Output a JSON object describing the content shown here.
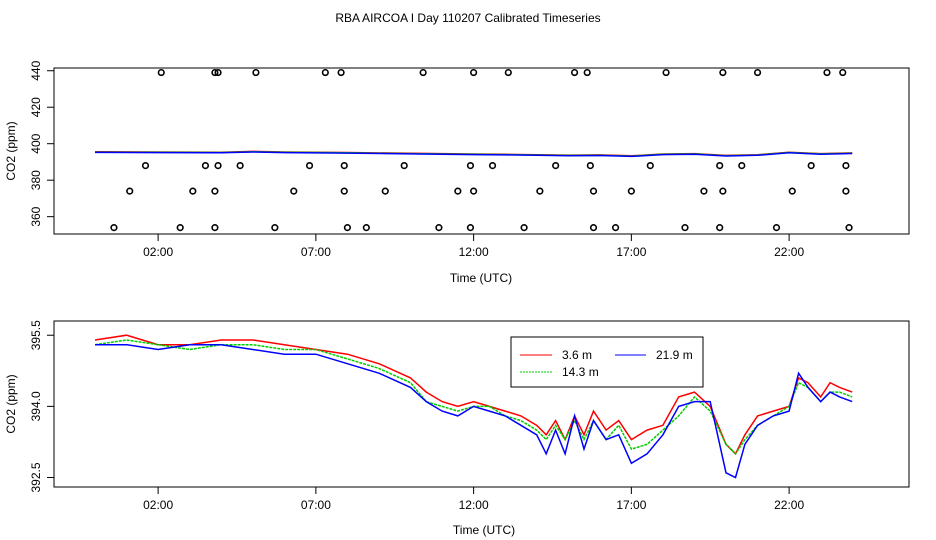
{
  "title": "RBA AIRCOA I  Day 110207  Calibrated Timeseries",
  "chart_data": [
    {
      "type": "scatter",
      "title": "RBA AIRCOA I  Day 110207  Calibrated Timeseries",
      "xlabel": "Time (UTC)",
      "ylabel": "CO2 (ppm)",
      "xlim": [
        -1.3,
        25.8
      ],
      "ylim": [
        350.5,
        441.5
      ],
      "x_ticks": [
        2,
        7,
        12,
        17,
        22
      ],
      "x_tick_labels": [
        "02:00",
        "07:00",
        "12:00",
        "17:00",
        "22:00"
      ],
      "y_ticks": [
        360,
        380,
        400,
        420,
        440
      ],
      "y_tick_labels": [
        "360",
        "380",
        "400",
        "420",
        "440"
      ],
      "grid": false,
      "line": {
        "x": [
          0.0,
          2.0,
          4.0,
          5.0,
          6.0,
          8.0,
          10.0,
          12.0,
          13.0,
          14.0,
          15.0,
          16.0,
          17.0,
          18.0,
          19.0,
          20.0,
          21.0,
          22.0,
          23.0,
          24.0
        ],
        "y": [
          395.4,
          395.3,
          395.2,
          395.6,
          395.3,
          395.0,
          394.6,
          394.2,
          394.0,
          393.8,
          393.6,
          393.7,
          393.2,
          394.2,
          394.4,
          393.4,
          393.8,
          395.2,
          394.4,
          394.8
        ],
        "colors": [
          "#ff0000",
          "#00cc00",
          "#0000ff"
        ]
      },
      "points": {
        "x": [
          0.6,
          1.1,
          1.6,
          2.1,
          2.7,
          3.1,
          3.5,
          3.8,
          3.8,
          3.8,
          3.9,
          3.9,
          4.6,
          5.1,
          5.7,
          6.3,
          6.8,
          7.3,
          7.8,
          7.9,
          7.9,
          8.0,
          8.6,
          9.2,
          9.8,
          10.4,
          10.9,
          11.5,
          11.9,
          11.9,
          12.0,
          12.0,
          12.6,
          13.1,
          13.6,
          14.1,
          14.6,
          15.2,
          15.6,
          15.7,
          15.8,
          15.8,
          16.5,
          17.0,
          17.6,
          18.1,
          18.7,
          19.3,
          19.8,
          19.8,
          19.9,
          19.9,
          20.5,
          21.0,
          21.6,
          22.1,
          22.7,
          23.2,
          23.7,
          23.8,
          23.8,
          23.9
        ],
        "y": [
          354,
          374,
          388,
          439,
          354,
          374,
          388,
          439,
          354,
          374,
          388,
          439,
          388,
          439,
          354,
          374,
          388,
          439,
          439,
          388,
          374,
          354,
          354,
          374,
          388,
          439,
          354,
          374,
          388,
          354,
          374,
          439,
          388,
          439,
          354,
          374,
          388,
          439,
          439,
          388,
          374,
          354,
          354,
          374,
          388,
          439,
          354,
          374,
          388,
          354,
          374,
          439,
          388,
          439,
          354,
          374,
          388,
          439,
          439,
          388,
          374,
          354
        ]
      }
    },
    {
      "type": "line",
      "xlabel": "Time (UTC)",
      "ylabel": "CO2 (ppm)",
      "xlim": [
        -1.3,
        25.8
      ],
      "ylim": [
        392.3,
        395.8
      ],
      "x_ticks": [
        2,
        7,
        12,
        17,
        22
      ],
      "x_tick_labels": [
        "02:00",
        "07:00",
        "12:00",
        "17:00",
        "22:00"
      ],
      "y_ticks": [
        392.5,
        394.0,
        395.5
      ],
      "y_tick_labels": [
        "392.5",
        "394.0",
        "395.5"
      ],
      "grid": false,
      "legend_position": "top-center",
      "x": [
        0.0,
        1.0,
        2.0,
        3.0,
        4.0,
        5.0,
        6.0,
        7.0,
        8.0,
        9.0,
        10.0,
        10.5,
        11.0,
        11.5,
        12.0,
        12.5,
        13.0,
        13.5,
        14.0,
        14.3,
        14.6,
        14.9,
        15.2,
        15.5,
        15.8,
        16.2,
        16.6,
        17.0,
        17.5,
        18.0,
        18.5,
        19.0,
        19.5,
        20.0,
        20.3,
        20.6,
        21.0,
        21.5,
        22.0,
        22.3,
        22.6,
        23.0,
        23.3,
        23.6,
        24.0
      ],
      "series": [
        {
          "name": "3.6 m",
          "color": "#ff0000",
          "values": [
            395.4,
            395.5,
            395.3,
            395.3,
            395.4,
            395.4,
            395.3,
            395.2,
            395.1,
            394.9,
            394.6,
            394.3,
            394.1,
            394.0,
            394.1,
            394.0,
            393.9,
            393.8,
            393.6,
            393.4,
            393.7,
            393.3,
            393.8,
            393.4,
            393.9,
            393.5,
            393.7,
            393.3,
            393.5,
            393.6,
            394.2,
            394.3,
            394.0,
            393.2,
            393.0,
            393.4,
            393.8,
            393.9,
            394.0,
            394.6,
            394.5,
            394.2,
            394.5,
            394.4,
            394.3
          ]
        },
        {
          "name": "14.3 m",
          "color": "#00cc00",
          "values": [
            395.3,
            395.4,
            395.3,
            395.2,
            395.3,
            395.3,
            395.2,
            395.2,
            395.0,
            394.8,
            394.5,
            394.1,
            394.0,
            393.9,
            394.0,
            394.0,
            393.8,
            393.7,
            393.5,
            393.3,
            393.6,
            393.3,
            393.7,
            393.3,
            393.7,
            393.3,
            393.6,
            393.1,
            393.2,
            393.5,
            393.8,
            394.2,
            393.9,
            393.2,
            393.0,
            393.3,
            393.6,
            393.8,
            394.0,
            394.5,
            394.4,
            394.1,
            394.3,
            394.3,
            394.2
          ]
        },
        {
          "name": "21.9 m",
          "color": "#0000ff",
          "values": [
            395.3,
            395.3,
            395.2,
            395.3,
            395.3,
            395.2,
            395.1,
            395.1,
            394.9,
            394.7,
            394.4,
            394.1,
            393.9,
            393.8,
            394.0,
            393.9,
            393.8,
            393.6,
            393.4,
            393.0,
            393.5,
            393.0,
            393.8,
            393.1,
            393.7,
            393.3,
            393.4,
            392.8,
            393.0,
            393.4,
            394.0,
            394.1,
            394.1,
            392.6,
            392.5,
            393.2,
            393.6,
            393.8,
            393.9,
            394.7,
            394.4,
            394.1,
            394.3,
            394.2,
            394.1
          ]
        }
      ]
    }
  ]
}
